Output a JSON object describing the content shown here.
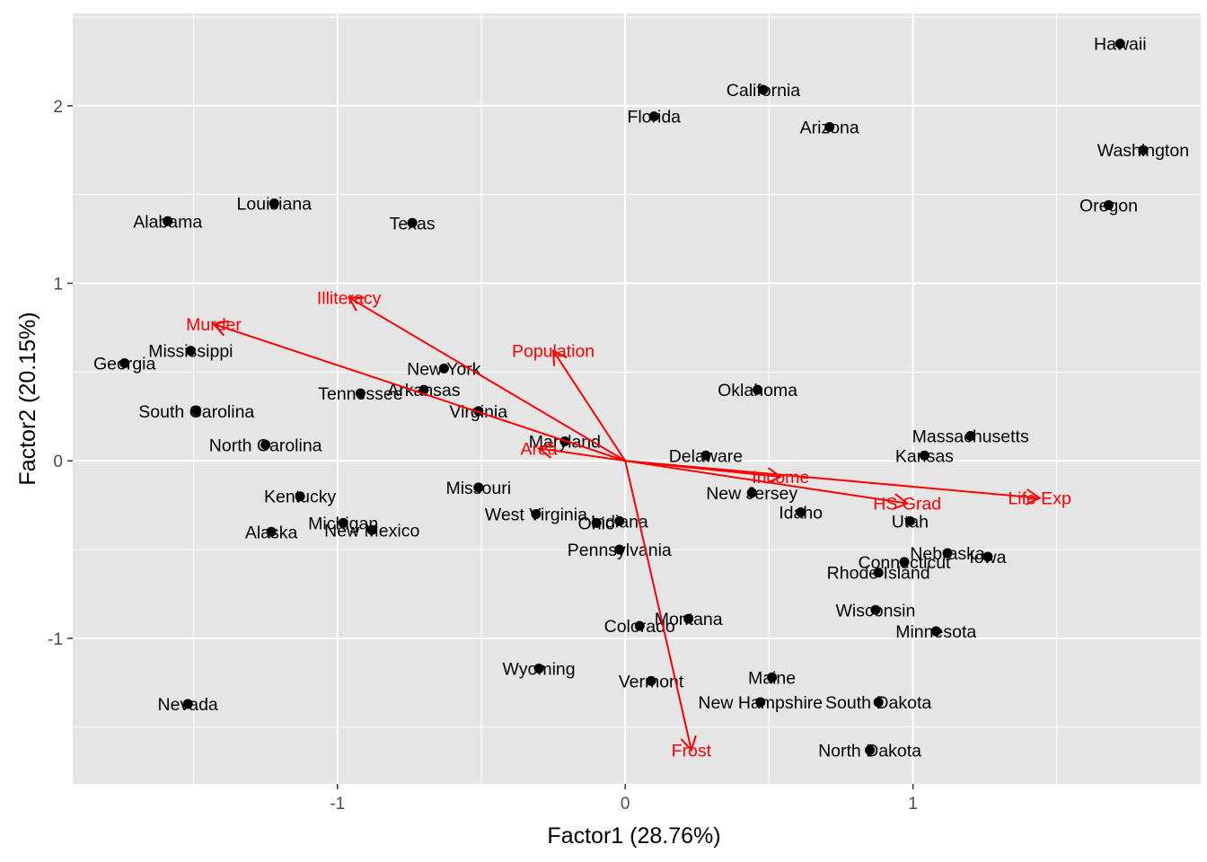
{
  "chart_data": {
    "type": "scatter",
    "subtype": "biplot",
    "xlabel": "Factor1 (28.76%)",
    "ylabel": "Factor2 (20.15%)",
    "xlim": [
      -1.92,
      2.0
    ],
    "ylim": [
      -1.82,
      2.52
    ],
    "x_ticks": [
      -1,
      0,
      1
    ],
    "y_ticks": [
      -1,
      0,
      1,
      2
    ],
    "grid": true,
    "legend": "none",
    "colors": {
      "panel": "#e5e5e5",
      "grid": "#ffffff",
      "points": "#000000",
      "arrows": "#ff0000",
      "tick_text": "#4d4d4d"
    },
    "points": [
      {
        "label": "Hawaii",
        "x": 1.72,
        "y": 2.35
      },
      {
        "label": "California",
        "x": 0.48,
        "y": 2.09
      },
      {
        "label": "Florida",
        "x": 0.1,
        "y": 1.94
      },
      {
        "label": "Arizona",
        "x": 0.71,
        "y": 1.88
      },
      {
        "label": "Washington",
        "x": 1.8,
        "y": 1.75
      },
      {
        "label": "Oregon",
        "x": 1.68,
        "y": 1.44
      },
      {
        "label": "Louisiana",
        "x": -1.22,
        "y": 1.45
      },
      {
        "label": "Alabama",
        "x": -1.59,
        "y": 1.35
      },
      {
        "label": "Texas",
        "x": -0.74,
        "y": 1.34
      },
      {
        "label": "Mississippi",
        "x": -1.51,
        "y": 0.62
      },
      {
        "label": "Georgia",
        "x": -1.74,
        "y": 0.55
      },
      {
        "label": "New York",
        "x": -0.63,
        "y": 0.52
      },
      {
        "label": "Arkansas",
        "x": -0.7,
        "y": 0.4
      },
      {
        "label": "Oklahoma",
        "x": 0.46,
        "y": 0.4
      },
      {
        "label": "Tennessee",
        "x": -0.92,
        "y": 0.38
      },
      {
        "label": "South Carolina",
        "x": -1.49,
        "y": 0.28
      },
      {
        "label": "Virginia",
        "x": -0.51,
        "y": 0.28
      },
      {
        "label": "Massachusetts",
        "x": 1.2,
        "y": 0.14
      },
      {
        "label": "Maryland",
        "x": -0.21,
        "y": 0.11
      },
      {
        "label": "North Carolina",
        "x": -1.25,
        "y": 0.09
      },
      {
        "label": "Delaware",
        "x": 0.28,
        "y": 0.03
      },
      {
        "label": "Kansas",
        "x": 1.04,
        "y": 0.03
      },
      {
        "label": "Missouri",
        "x": -0.51,
        "y": -0.15
      },
      {
        "label": "New Jersey",
        "x": 0.44,
        "y": -0.18
      },
      {
        "label": "Kentucky",
        "x": -1.13,
        "y": -0.2
      },
      {
        "label": "Idaho",
        "x": 0.61,
        "y": -0.29
      },
      {
        "label": "West Virginia",
        "x": -0.31,
        "y": -0.3
      },
      {
        "label": "Ohio",
        "x": -0.1,
        "y": -0.35
      },
      {
        "label": "Indiana",
        "x": -0.02,
        "y": -0.34
      },
      {
        "label": "Utah",
        "x": 0.99,
        "y": -0.34
      },
      {
        "label": "Michigan",
        "x": -0.98,
        "y": -0.35
      },
      {
        "label": "New Mexico",
        "x": -0.88,
        "y": -0.39
      },
      {
        "label": "Alaska",
        "x": -1.23,
        "y": -0.4
      },
      {
        "label": "Pennsylvania",
        "x": -0.02,
        "y": -0.5
      },
      {
        "label": "Nebraska",
        "x": 1.12,
        "y": -0.52
      },
      {
        "label": "Iowa",
        "x": 1.26,
        "y": -0.54
      },
      {
        "label": "Connecticut",
        "x": 0.97,
        "y": -0.57
      },
      {
        "label": "Rhode Island",
        "x": 0.88,
        "y": -0.63
      },
      {
        "label": "Wisconsin",
        "x": 0.87,
        "y": -0.84
      },
      {
        "label": "Montana",
        "x": 0.22,
        "y": -0.89
      },
      {
        "label": "Colorado",
        "x": 0.05,
        "y": -0.93
      },
      {
        "label": "Minnesota",
        "x": 1.08,
        "y": -0.96
      },
      {
        "label": "Wyoming",
        "x": -0.3,
        "y": -1.17
      },
      {
        "label": "Maine",
        "x": 0.51,
        "y": -1.22
      },
      {
        "label": "Vermont",
        "x": 0.09,
        "y": -1.24
      },
      {
        "label": "Nevada",
        "x": -1.52,
        "y": -1.37
      },
      {
        "label": "New Hampshire",
        "x": 0.47,
        "y": -1.36
      },
      {
        "label": "South Dakota",
        "x": 0.88,
        "y": -1.36
      },
      {
        "label": "North Dakota",
        "x": 0.85,
        "y": -1.63
      }
    ],
    "loadings": [
      {
        "label": "Illiteracy",
        "x": -0.96,
        "y": 0.92
      },
      {
        "label": "Murder",
        "x": -1.43,
        "y": 0.77
      },
      {
        "label": "Population",
        "x": -0.25,
        "y": 0.62
      },
      {
        "label": "Area",
        "x": -0.3,
        "y": 0.07
      },
      {
        "label": "Income",
        "x": 0.54,
        "y": -0.09
      },
      {
        "label": "HS Grad",
        "x": 0.98,
        "y": -0.24
      },
      {
        "label": "Life Exp",
        "x": 1.44,
        "y": -0.21
      },
      {
        "label": "Frost",
        "x": 0.23,
        "y": -1.63
      }
    ]
  }
}
